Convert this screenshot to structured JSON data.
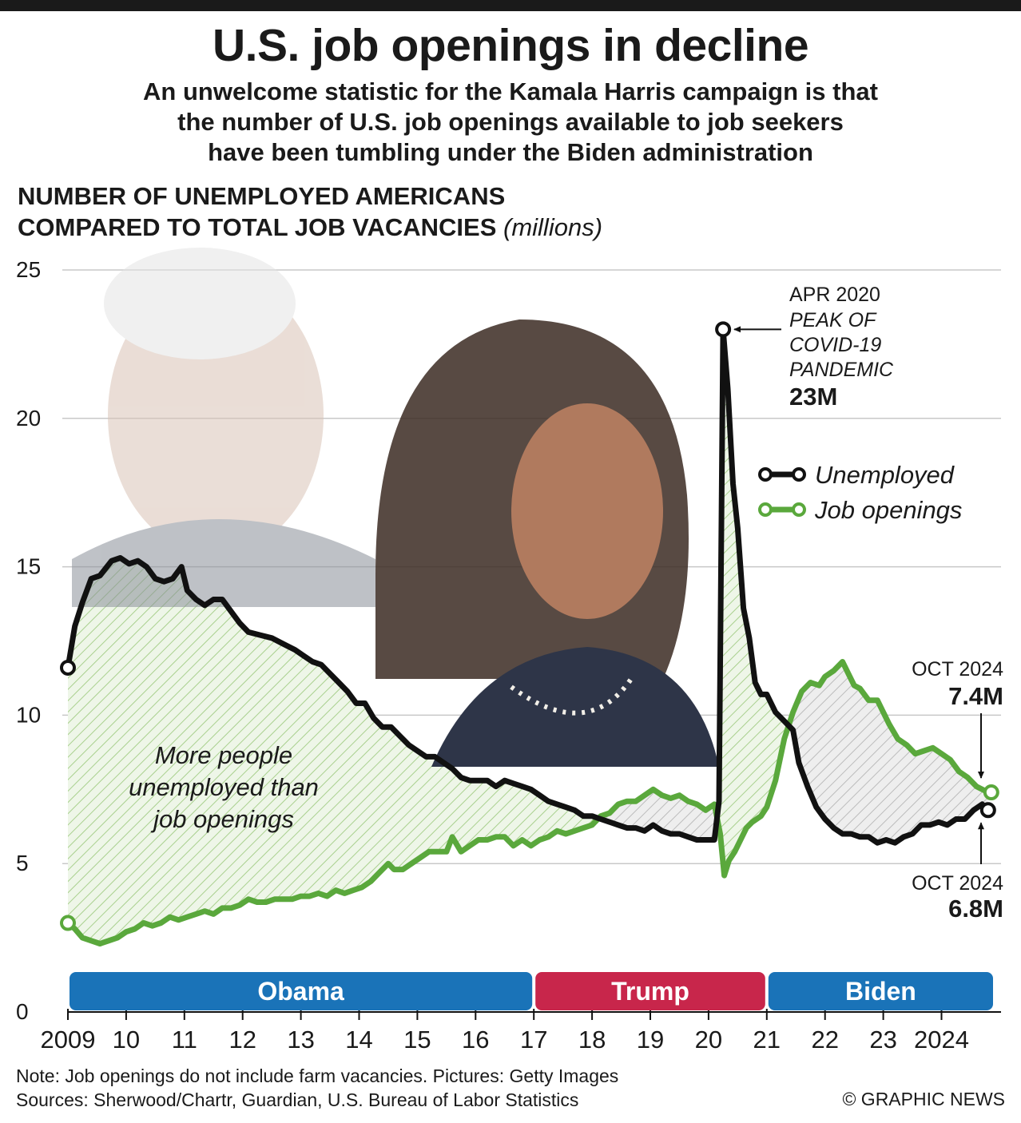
{
  "header": {
    "title": "U.S. job openings in decline",
    "subtitle_lines": [
      "An unwelcome statistic for the Kamala Harris campaign is that",
      "the number of U.S. job openings available to job seekers",
      "have been tumbling under the Biden administration"
    ],
    "chart_heading_line1": "NUMBER OF UNEMPLOYED AMERICANS",
    "chart_heading_line2": "COMPARED TO TOTAL JOB VACANCIES",
    "chart_heading_unit": "(millions)"
  },
  "footer": {
    "note": "Note: Job openings do not include farm vacancies. Pictures: Getty Images",
    "sources": "Sources: Sherwood/Chartr, Guardian, U.S. Bureau of Labor Statistics",
    "credit": "© GRAPHIC NEWS"
  },
  "colors": {
    "unemployed": "#111111",
    "job_openings": "#5aa83c",
    "obama": "#1a73b8",
    "trump": "#c8264b",
    "biden": "#1a73b8",
    "grid": "#c8c8c8"
  },
  "chart_data": {
    "type": "line",
    "ylim": [
      0,
      25
    ],
    "xlim": [
      2009.0,
      2025.0
    ],
    "y_ticks": [
      0,
      5,
      10,
      15,
      20,
      25
    ],
    "x_tick_labels": [
      {
        "x": 2009,
        "label": "2009"
      },
      {
        "x": 2010,
        "label": "10"
      },
      {
        "x": 2011,
        "label": "11"
      },
      {
        "x": 2012,
        "label": "12"
      },
      {
        "x": 2013,
        "label": "13"
      },
      {
        "x": 2014,
        "label": "14"
      },
      {
        "x": 2015,
        "label": "15"
      },
      {
        "x": 2016,
        "label": "16"
      },
      {
        "x": 2017,
        "label": "17"
      },
      {
        "x": 2018,
        "label": "18"
      },
      {
        "x": 2019,
        "label": "19"
      },
      {
        "x": 2020,
        "label": "20"
      },
      {
        "x": 2021,
        "label": "21"
      },
      {
        "x": 2022,
        "label": "22"
      },
      {
        "x": 2023,
        "label": "23"
      },
      {
        "x": 2024,
        "label": "2024"
      }
    ],
    "legend_position": "right",
    "series": [
      {
        "name": "Unemployed",
        "points": [
          [
            2009.0,
            11.6
          ],
          [
            2009.12,
            13.0
          ],
          [
            2009.25,
            13.8
          ],
          [
            2009.4,
            14.6
          ],
          [
            2009.55,
            14.7
          ],
          [
            2009.75,
            15.2
          ],
          [
            2009.9,
            15.3
          ],
          [
            2010.05,
            15.1
          ],
          [
            2010.2,
            15.2
          ],
          [
            2010.35,
            15.0
          ],
          [
            2010.5,
            14.6
          ],
          [
            2010.65,
            14.5
          ],
          [
            2010.8,
            14.6
          ],
          [
            2010.95,
            15.0
          ],
          [
            2011.05,
            14.2
          ],
          [
            2011.2,
            13.9
          ],
          [
            2011.35,
            13.7
          ],
          [
            2011.5,
            13.9
          ],
          [
            2011.65,
            13.9
          ],
          [
            2011.8,
            13.5
          ],
          [
            2011.95,
            13.1
          ],
          [
            2012.1,
            12.8
          ],
          [
            2012.3,
            12.7
          ],
          [
            2012.5,
            12.6
          ],
          [
            2012.7,
            12.4
          ],
          [
            2012.9,
            12.2
          ],
          [
            2013.05,
            12.0
          ],
          [
            2013.2,
            11.8
          ],
          [
            2013.35,
            11.7
          ],
          [
            2013.5,
            11.4
          ],
          [
            2013.65,
            11.1
          ],
          [
            2013.8,
            10.8
          ],
          [
            2013.95,
            10.4
          ],
          [
            2014.1,
            10.4
          ],
          [
            2014.25,
            9.9
          ],
          [
            2014.4,
            9.6
          ],
          [
            2014.55,
            9.6
          ],
          [
            2014.7,
            9.3
          ],
          [
            2014.85,
            9.0
          ],
          [
            2015.0,
            8.8
          ],
          [
            2015.15,
            8.6
          ],
          [
            2015.3,
            8.6
          ],
          [
            2015.45,
            8.4
          ],
          [
            2015.6,
            8.2
          ],
          [
            2015.75,
            7.9
          ],
          [
            2015.9,
            7.8
          ],
          [
            2016.05,
            7.8
          ],
          [
            2016.2,
            7.8
          ],
          [
            2016.35,
            7.6
          ],
          [
            2016.5,
            7.8
          ],
          [
            2016.65,
            7.7
          ],
          [
            2016.8,
            7.6
          ],
          [
            2016.95,
            7.5
          ],
          [
            2017.1,
            7.3
          ],
          [
            2017.25,
            7.1
          ],
          [
            2017.4,
            7.0
          ],
          [
            2017.55,
            6.9
          ],
          [
            2017.7,
            6.8
          ],
          [
            2017.85,
            6.6
          ],
          [
            2018.0,
            6.6
          ],
          [
            2018.15,
            6.5
          ],
          [
            2018.3,
            6.4
          ],
          [
            2018.45,
            6.3
          ],
          [
            2018.6,
            6.2
          ],
          [
            2018.75,
            6.2
          ],
          [
            2018.9,
            6.1
          ],
          [
            2019.05,
            6.3
          ],
          [
            2019.2,
            6.1
          ],
          [
            2019.35,
            6.0
          ],
          [
            2019.5,
            6.0
          ],
          [
            2019.65,
            5.9
          ],
          [
            2019.8,
            5.8
          ],
          [
            2019.95,
            5.8
          ],
          [
            2020.1,
            5.8
          ],
          [
            2020.18,
            7.1
          ],
          [
            2020.25,
            23.0
          ],
          [
            2020.33,
            21.0
          ],
          [
            2020.42,
            17.8
          ],
          [
            2020.5,
            16.3
          ],
          [
            2020.6,
            13.6
          ],
          [
            2020.7,
            12.6
          ],
          [
            2020.8,
            11.1
          ],
          [
            2020.9,
            10.7
          ],
          [
            2021.0,
            10.7
          ],
          [
            2021.15,
            10.1
          ],
          [
            2021.3,
            9.8
          ],
          [
            2021.45,
            9.5
          ],
          [
            2021.55,
            8.4
          ],
          [
            2021.7,
            7.6
          ],
          [
            2021.85,
            6.9
          ],
          [
            2022.0,
            6.5
          ],
          [
            2022.15,
            6.2
          ],
          [
            2022.3,
            6.0
          ],
          [
            2022.45,
            6.0
          ],
          [
            2022.6,
            5.9
          ],
          [
            2022.75,
            5.9
          ],
          [
            2022.9,
            5.7
          ],
          [
            2023.05,
            5.8
          ],
          [
            2023.2,
            5.7
          ],
          [
            2023.35,
            5.9
          ],
          [
            2023.5,
            6.0
          ],
          [
            2023.65,
            6.3
          ],
          [
            2023.8,
            6.3
          ],
          [
            2023.95,
            6.4
          ],
          [
            2024.1,
            6.3
          ],
          [
            2024.25,
            6.5
          ],
          [
            2024.4,
            6.5
          ],
          [
            2024.55,
            6.8
          ],
          [
            2024.7,
            7.0
          ],
          [
            2024.8,
            6.8
          ]
        ]
      },
      {
        "name": "Job openings",
        "points": [
          [
            2009.0,
            3.0
          ],
          [
            2009.12,
            2.8
          ],
          [
            2009.25,
            2.5
          ],
          [
            2009.4,
            2.4
          ],
          [
            2009.55,
            2.3
          ],
          [
            2009.7,
            2.4
          ],
          [
            2009.85,
            2.5
          ],
          [
            2010.0,
            2.7
          ],
          [
            2010.15,
            2.8
          ],
          [
            2010.3,
            3.0
          ],
          [
            2010.45,
            2.9
          ],
          [
            2010.6,
            3.0
          ],
          [
            2010.75,
            3.2
          ],
          [
            2010.9,
            3.1
          ],
          [
            2011.05,
            3.2
          ],
          [
            2011.2,
            3.3
          ],
          [
            2011.35,
            3.4
          ],
          [
            2011.5,
            3.3
          ],
          [
            2011.65,
            3.5
          ],
          [
            2011.8,
            3.5
          ],
          [
            2011.95,
            3.6
          ],
          [
            2012.1,
            3.8
          ],
          [
            2012.25,
            3.7
          ],
          [
            2012.4,
            3.7
          ],
          [
            2012.55,
            3.8
          ],
          [
            2012.7,
            3.8
          ],
          [
            2012.85,
            3.8
          ],
          [
            2013.0,
            3.9
          ],
          [
            2013.15,
            3.9
          ],
          [
            2013.3,
            4.0
          ],
          [
            2013.45,
            3.9
          ],
          [
            2013.6,
            4.1
          ],
          [
            2013.75,
            4.0
          ],
          [
            2013.9,
            4.1
          ],
          [
            2014.05,
            4.2
          ],
          [
            2014.2,
            4.4
          ],
          [
            2014.35,
            4.7
          ],
          [
            2014.5,
            5.0
          ],
          [
            2014.6,
            4.8
          ],
          [
            2014.75,
            4.8
          ],
          [
            2014.9,
            5.0
          ],
          [
            2015.05,
            5.2
          ],
          [
            2015.2,
            5.4
          ],
          [
            2015.35,
            5.4
          ],
          [
            2015.5,
            5.4
          ],
          [
            2015.6,
            5.9
          ],
          [
            2015.75,
            5.4
          ],
          [
            2015.9,
            5.6
          ],
          [
            2016.05,
            5.8
          ],
          [
            2016.2,
            5.8
          ],
          [
            2016.35,
            5.9
          ],
          [
            2016.5,
            5.9
          ],
          [
            2016.65,
            5.6
          ],
          [
            2016.8,
            5.8
          ],
          [
            2016.95,
            5.6
          ],
          [
            2017.1,
            5.8
          ],
          [
            2017.25,
            5.9
          ],
          [
            2017.4,
            6.1
          ],
          [
            2017.55,
            6.0
          ],
          [
            2017.7,
            6.1
          ],
          [
            2017.85,
            6.2
          ],
          [
            2018.0,
            6.3
          ],
          [
            2018.15,
            6.6
          ],
          [
            2018.3,
            6.7
          ],
          [
            2018.45,
            7.0
          ],
          [
            2018.6,
            7.1
          ],
          [
            2018.75,
            7.1
          ],
          [
            2018.9,
            7.3
          ],
          [
            2019.05,
            7.5
          ],
          [
            2019.2,
            7.3
          ],
          [
            2019.35,
            7.2
          ],
          [
            2019.5,
            7.3
          ],
          [
            2019.65,
            7.1
          ],
          [
            2019.8,
            7.0
          ],
          [
            2019.95,
            6.8
          ],
          [
            2020.1,
            7.0
          ],
          [
            2020.2,
            6.0
          ],
          [
            2020.27,
            4.6
          ],
          [
            2020.35,
            5.1
          ],
          [
            2020.45,
            5.4
          ],
          [
            2020.55,
            5.8
          ],
          [
            2020.65,
            6.2
          ],
          [
            2020.75,
            6.4
          ],
          [
            2020.9,
            6.6
          ],
          [
            2021.0,
            6.9
          ],
          [
            2021.15,
            7.8
          ],
          [
            2021.3,
            9.2
          ],
          [
            2021.45,
            10.1
          ],
          [
            2021.6,
            10.8
          ],
          [
            2021.75,
            11.1
          ],
          [
            2021.9,
            11.0
          ],
          [
            2022.0,
            11.3
          ],
          [
            2022.15,
            11.5
          ],
          [
            2022.3,
            11.8
          ],
          [
            2022.4,
            11.4
          ],
          [
            2022.5,
            11.0
          ],
          [
            2022.6,
            10.9
          ],
          [
            2022.75,
            10.5
          ],
          [
            2022.9,
            10.5
          ],
          [
            2023.0,
            10.1
          ],
          [
            2023.1,
            9.7
          ],
          [
            2023.25,
            9.2
          ],
          [
            2023.4,
            9.0
          ],
          [
            2023.55,
            8.7
          ],
          [
            2023.7,
            8.8
          ],
          [
            2023.85,
            8.9
          ],
          [
            2024.0,
            8.7
          ],
          [
            2024.15,
            8.5
          ],
          [
            2024.3,
            8.1
          ],
          [
            2024.45,
            7.9
          ],
          [
            2024.6,
            7.6
          ],
          [
            2024.8,
            7.4
          ]
        ]
      }
    ],
    "annotations": {
      "peak_date": "APR 2020",
      "peak_lines": [
        "PEAK OF",
        "COVID-19",
        "PANDEMIC"
      ],
      "peak_value": "23M",
      "oct_openings_date": "OCT 2024",
      "oct_openings_value": "7.4M",
      "oct_unemployed_date": "OCT 2024",
      "oct_unemployed_value": "6.8M",
      "area_lines": [
        "More people",
        "unemployed than",
        "job openings"
      ]
    },
    "presidencies": [
      {
        "name": "Obama",
        "start": 2009.0,
        "end": 2017.0
      },
      {
        "name": "Trump",
        "start": 2017.0,
        "end": 2021.0
      },
      {
        "name": "Biden",
        "start": 2021.0,
        "end": 2025.0
      }
    ]
  }
}
